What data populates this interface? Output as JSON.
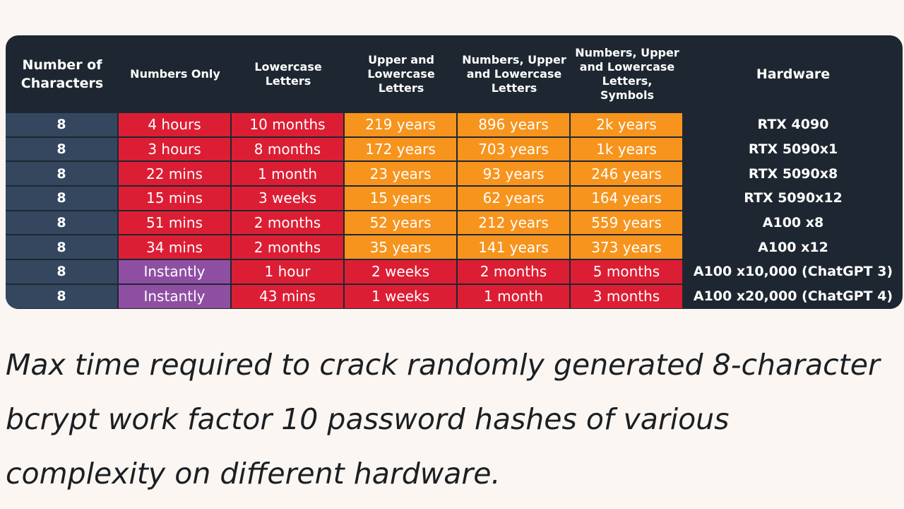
{
  "chart_data": {
    "type": "table",
    "columns": [
      "Number of\nCharacters",
      "Numbers Only",
      "Lowercase\nLetters",
      "Upper and\nLowercase\nLetters",
      "Numbers, Upper\nand Lowercase\nLetters",
      "Numbers, Upper\nand Lowercase\nLetters, Symbols",
      "Hardware"
    ],
    "rows": [
      {
        "chars": "8",
        "times": [
          "4 hours",
          "10 months",
          "219 years",
          "896 years",
          "2k years"
        ],
        "colors": [
          "#dc1e34",
          "#dc1e34",
          "#f7941d",
          "#f7941d",
          "#f7941d"
        ],
        "hardware": "RTX 4090"
      },
      {
        "chars": "8",
        "times": [
          "3 hours",
          "8 months",
          "172 years",
          "703 years",
          "1k years"
        ],
        "colors": [
          "#dc1e34",
          "#dc1e34",
          "#f7941d",
          "#f7941d",
          "#f7941d"
        ],
        "hardware": "RTX 5090x1"
      },
      {
        "chars": "8",
        "times": [
          "22 mins",
          "1 month",
          "23 years",
          "93 years",
          "246 years"
        ],
        "colors": [
          "#dc1e34",
          "#dc1e34",
          "#f7941d",
          "#f7941d",
          "#f7941d"
        ],
        "hardware": "RTX 5090x8"
      },
      {
        "chars": "8",
        "times": [
          "15 mins",
          "3 weeks",
          "15 years",
          "62 years",
          "164 years"
        ],
        "colors": [
          "#dc1e34",
          "#dc1e34",
          "#f7941d",
          "#f7941d",
          "#f7941d"
        ],
        "hardware": "RTX 5090x12"
      },
      {
        "chars": "8",
        "times": [
          "51 mins",
          "2 months",
          "52 years",
          "212 years",
          "559 years"
        ],
        "colors": [
          "#dc1e34",
          "#dc1e34",
          "#f7941d",
          "#f7941d",
          "#f7941d"
        ],
        "hardware": "A100 x8"
      },
      {
        "chars": "8",
        "times": [
          "34 mins",
          "2 months",
          "35 years",
          "141 years",
          "373 years"
        ],
        "colors": [
          "#dc1e34",
          "#dc1e34",
          "#f7941d",
          "#f7941d",
          "#f7941d"
        ],
        "hardware": "A100 x12"
      },
      {
        "chars": "8",
        "times": [
          "Instantly",
          "1 hour",
          "2 weeks",
          "2 months",
          "5 months"
        ],
        "colors": [
          "#8e4fa3",
          "#dc1e34",
          "#dc1e34",
          "#dc1e34",
          "#dc1e34"
        ],
        "hardware": "A100 x10,000 (ChatGPT 3)"
      },
      {
        "chars": "8",
        "times": [
          "Instantly",
          "43 mins",
          "1 weeks",
          "1 month",
          "3 months"
        ],
        "colors": [
          "#8e4fa3",
          "#dc1e34",
          "#dc1e34",
          "#dc1e34",
          "#dc1e34"
        ],
        "hardware": "A100 x20,000 (ChatGPT 4)"
      }
    ]
  },
  "caption": "Max time required to crack randomly generated 8-character bcrypt work factor 10 password hashes of various complexity on different hardware.",
  "colors": {
    "background": "#fbf6f1",
    "table_bg": "#1e2731",
    "chars_cell": "#34475f",
    "red": "#dc1e34",
    "orange": "#f7941d",
    "purple": "#8e4fa3"
  }
}
